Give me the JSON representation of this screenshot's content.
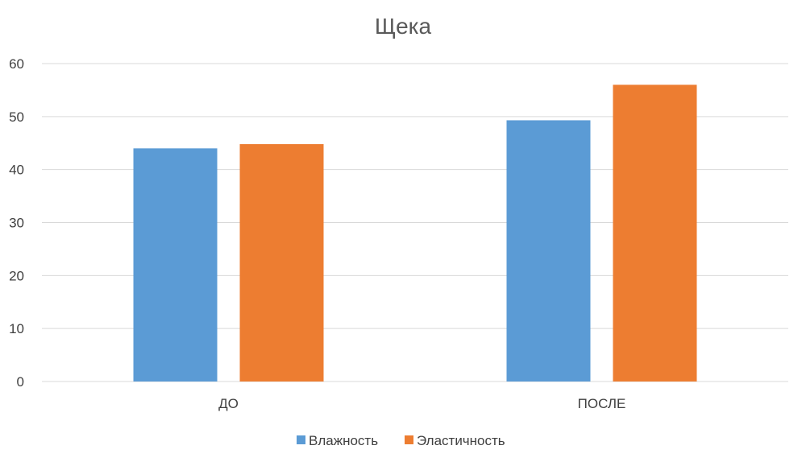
{
  "chart_data": {
    "type": "bar",
    "title": "Щека",
    "categories": [
      "ДО",
      "ПОСЛЕ"
    ],
    "series": [
      {
        "name": "Влажность",
        "values": [
          44,
          49.3
        ],
        "color": "#5b9bd5"
      },
      {
        "name": "Эластичность",
        "values": [
          44.8,
          56
        ],
        "color": "#ed7d31"
      }
    ],
    "ylim": [
      0,
      60
    ],
    "yticks": [
      0,
      10,
      20,
      30,
      40,
      50,
      60
    ],
    "grid": true,
    "legend_position": "bottom"
  }
}
